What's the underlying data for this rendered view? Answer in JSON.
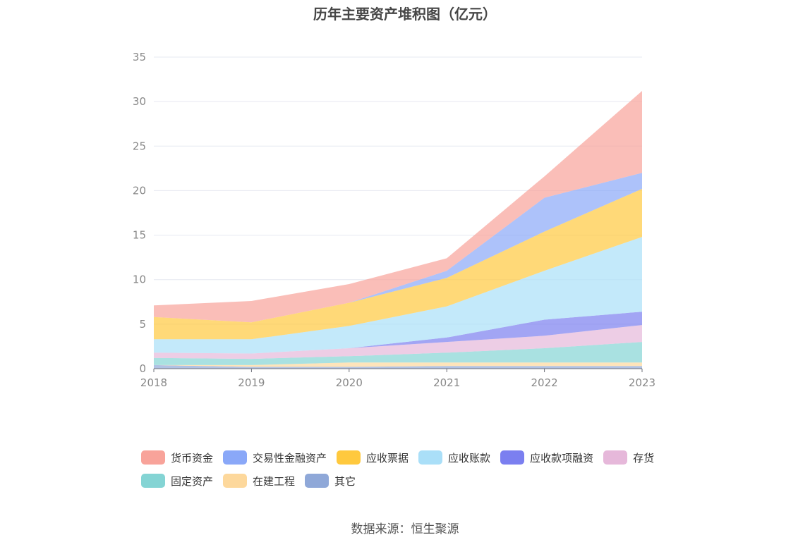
{
  "chart_data": {
    "type": "area",
    "stacked": true,
    "title": "历年主要资产堆积图（亿元）",
    "categories": [
      "2018",
      "2019",
      "2020",
      "2021",
      "2022",
      "2023"
    ],
    "ylim": [
      0,
      35
    ],
    "yticks": [
      0,
      5,
      10,
      15,
      20,
      25,
      30,
      35
    ],
    "grid": true,
    "legend_position": "bottom",
    "source": "数据来源：恒生聚源",
    "series": [
      {
        "name": "其它",
        "color": "#8fa8d8",
        "values": [
          0.4,
          0.2,
          0.2,
          0.3,
          0.3,
          0.3
        ]
      },
      {
        "name": "在建工程",
        "color": "#fdd89c",
        "values": [
          0.0,
          0.2,
          0.5,
          0.4,
          0.4,
          0.4
        ]
      },
      {
        "name": "固定资产",
        "color": "#84d4d4",
        "values": [
          0.8,
          0.7,
          0.7,
          1.1,
          1.6,
          2.3
        ]
      },
      {
        "name": "存货",
        "color": "#e6b8da",
        "values": [
          0.6,
          0.6,
          0.9,
          1.2,
          1.4,
          1.9
        ]
      },
      {
        "name": "应收款项融资",
        "color": "#7b7ff0",
        "values": [
          0.0,
          0.0,
          0.0,
          0.5,
          1.8,
          1.5
        ]
      },
      {
        "name": "应收账款",
        "color": "#aadff8",
        "values": [
          1.5,
          1.6,
          2.5,
          3.5,
          5.5,
          8.4
        ]
      },
      {
        "name": "应收票据",
        "color": "#ffc93e",
        "values": [
          2.5,
          1.9,
          2.6,
          3.2,
          4.4,
          5.4
        ]
      },
      {
        "name": "交易性金融资产",
        "color": "#8aa8f8",
        "values": [
          0.0,
          0.0,
          0.0,
          0.8,
          3.8,
          1.8
        ]
      },
      {
        "name": "货币资金",
        "color": "#f8a39a",
        "values": [
          1.3,
          2.4,
          2.1,
          1.4,
          2.4,
          9.2
        ]
      }
    ],
    "legend_order": [
      "货币资金",
      "交易性金融资产",
      "应收票据",
      "应收账款",
      "应收款项融资",
      "存货",
      "固定资产",
      "在建工程",
      "其它"
    ]
  }
}
